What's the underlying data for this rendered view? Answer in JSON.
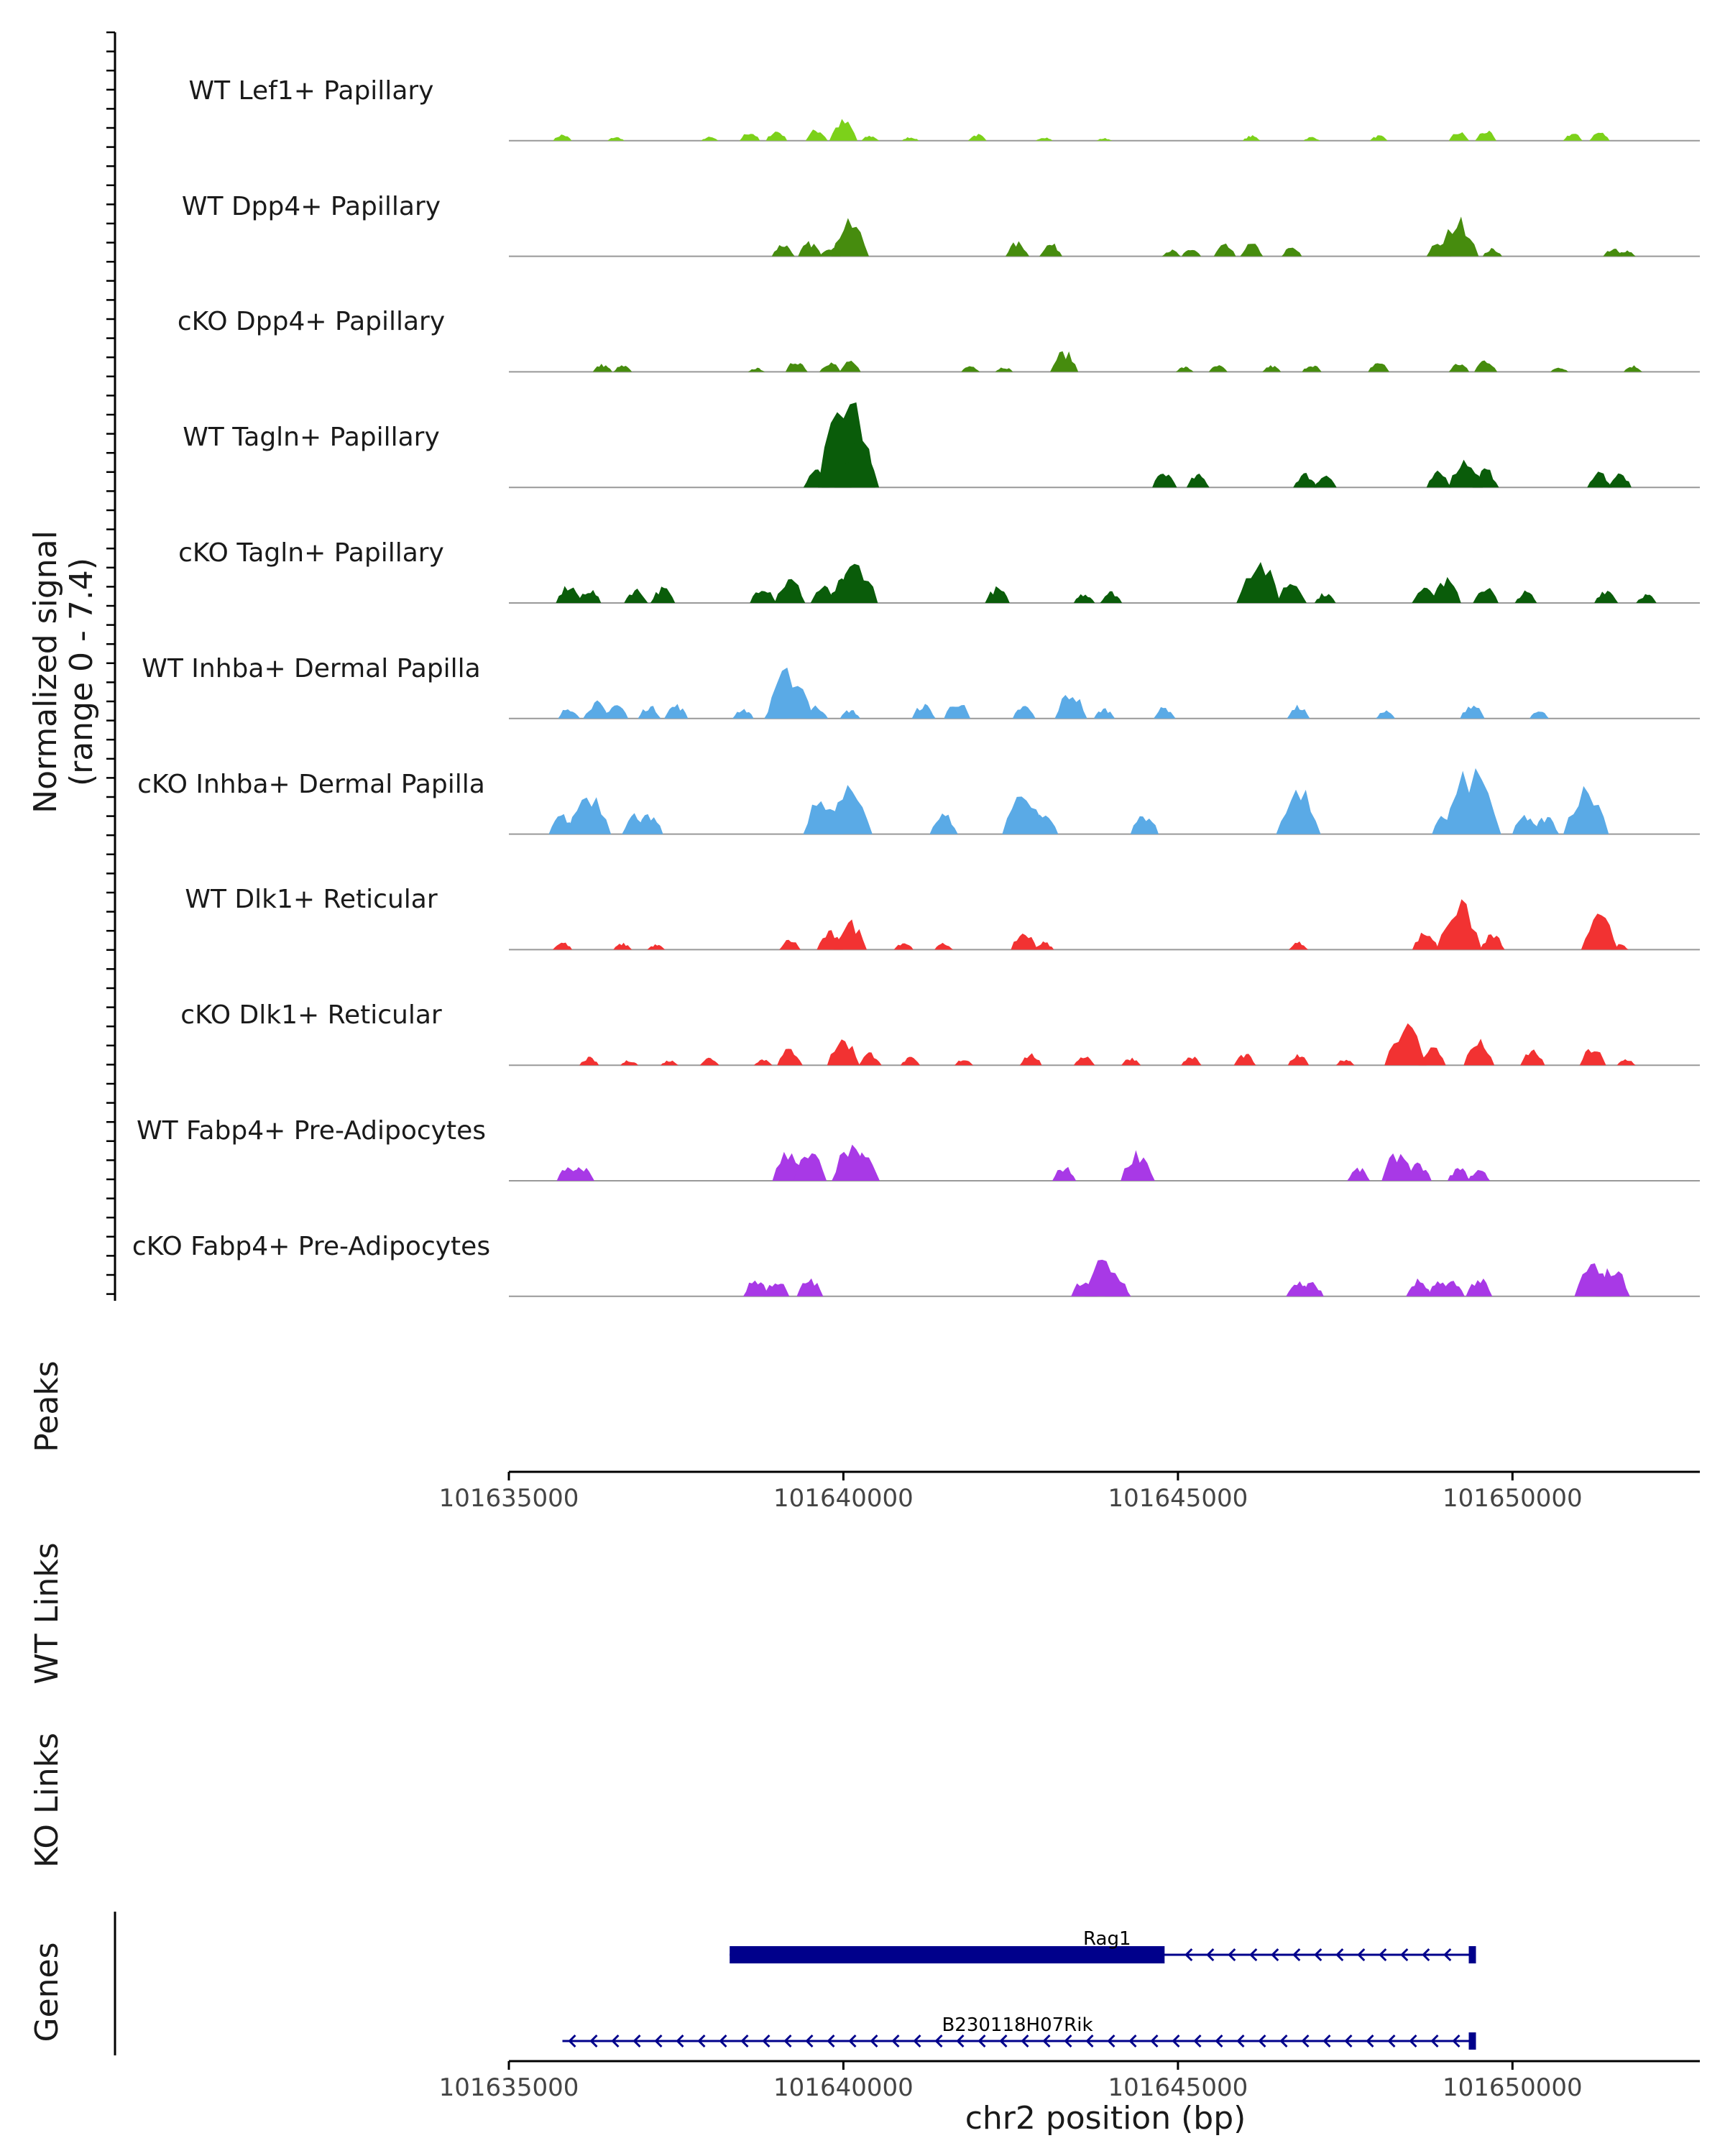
{
  "chart_data": {
    "type": "area",
    "title": "",
    "ylabel": "Normalized signal\n(range 0 - 7.4)",
    "ylim": [
      0,
      7.4
    ],
    "xlabel": "chr2 position (bp)",
    "xlim": [
      101635000,
      101652800
    ],
    "xticks": [
      101635000,
      101640000,
      101645000,
      101650000
    ],
    "tick_labels": [
      "101635000",
      "101640000",
      "101645000",
      "101650000"
    ],
    "series": [
      {
        "name": "WT Lef1+ Papillary",
        "color": "#7cd11a",
        "peaks": [
          [
            101635800,
            0.5
          ],
          [
            101636600,
            0.3
          ],
          [
            101638000,
            0.3
          ],
          [
            101638600,
            0.7
          ],
          [
            101639000,
            0.8
          ],
          [
            101639600,
            0.9
          ],
          [
            101640000,
            1.6
          ],
          [
            101640400,
            0.4
          ],
          [
            101641000,
            0.3
          ],
          [
            101642000,
            0.5
          ],
          [
            101643000,
            0.3
          ],
          [
            101643900,
            0.2
          ],
          [
            101646100,
            0.4
          ],
          [
            101647000,
            0.3
          ],
          [
            101648000,
            0.4
          ],
          [
            101649200,
            0.7
          ],
          [
            101649600,
            0.8
          ],
          [
            101650900,
            0.6
          ],
          [
            101651300,
            0.7
          ]
        ]
      },
      {
        "name": "WT Dpp4+ Papillary",
        "color": "#468c0e",
        "peaks": [
          [
            101639100,
            1.0
          ],
          [
            101639500,
            1.1
          ],
          [
            101639800,
            0.8
          ],
          [
            101640100,
            2.7
          ],
          [
            101642600,
            1.1
          ],
          [
            101643100,
            1.0
          ],
          [
            101644900,
            0.5
          ],
          [
            101645200,
            0.6
          ],
          [
            101645700,
            0.9
          ],
          [
            101646100,
            1.0
          ],
          [
            101646700,
            0.7
          ],
          [
            101648900,
            1.2
          ],
          [
            101649200,
            2.9
          ],
          [
            101649700,
            0.6
          ],
          [
            101651500,
            0.6
          ],
          [
            101651700,
            0.5
          ]
        ]
      },
      {
        "name": "cKO Dpp4+ Papillary",
        "color": "#468c0e",
        "peaks": [
          [
            101636400,
            0.6
          ],
          [
            101636700,
            0.5
          ],
          [
            101638700,
            0.3
          ],
          [
            101639300,
            0.9
          ],
          [
            101639800,
            0.8
          ],
          [
            101640100,
            0.8
          ],
          [
            101641900,
            0.5
          ],
          [
            101642400,
            0.4
          ],
          [
            101643300,
            1.6
          ],
          [
            101645100,
            0.4
          ],
          [
            101645600,
            0.5
          ],
          [
            101646400,
            0.5
          ],
          [
            101647000,
            0.6
          ],
          [
            101648000,
            0.8
          ],
          [
            101649200,
            0.7
          ],
          [
            101649600,
            1.0
          ],
          [
            101650700,
            0.4
          ],
          [
            101651800,
            0.5
          ]
        ]
      },
      {
        "name": "WT Tagln+ Papillary",
        "color": "#0a5c0a",
        "peaks": [
          [
            101639600,
            1.4
          ],
          [
            101639900,
            1.8
          ],
          [
            101640050,
            7.4
          ],
          [
            101640200,
            3.5
          ],
          [
            101644800,
            1.2
          ],
          [
            101645300,
            1.0
          ],
          [
            101646900,
            1.1
          ],
          [
            101647200,
            1.0
          ],
          [
            101648900,
            1.2
          ],
          [
            101649300,
            2.3
          ],
          [
            101649600,
            1.4
          ],
          [
            101651300,
            1.2
          ],
          [
            101651600,
            1.1
          ]
        ]
      },
      {
        "name": "cKO Tagln+ Papillary",
        "color": "#0a5c0a",
        "peaks": [
          [
            101635900,
            1.4
          ],
          [
            101636200,
            1.1
          ],
          [
            101636900,
            1.1
          ],
          [
            101637300,
            1.2
          ],
          [
            101638800,
            1.4
          ],
          [
            101639200,
            1.9
          ],
          [
            101639700,
            1.3
          ],
          [
            101640000,
            1.8
          ],
          [
            101640200,
            3.2
          ],
          [
            101642300,
            1.2
          ],
          [
            101643600,
            0.8
          ],
          [
            101644000,
            0.9
          ],
          [
            101646200,
            3.4
          ],
          [
            101646700,
            1.8
          ],
          [
            101647200,
            0.8
          ],
          [
            101648700,
            1.5
          ],
          [
            101649000,
            1.9
          ],
          [
            101649600,
            1.3
          ],
          [
            101650200,
            0.9
          ],
          [
            101651400,
            1.1
          ],
          [
            101652000,
            0.7
          ]
        ]
      },
      {
        "name": "WT Inhba+ Dermal Papilla",
        "color": "#5aaae6",
        "peaks": [
          [
            101635900,
            0.9
          ],
          [
            101636300,
            1.3
          ],
          [
            101636600,
            1.2
          ],
          [
            101637100,
            1.0
          ],
          [
            101637500,
            1.1
          ],
          [
            101638500,
            0.8
          ],
          [
            101639000,
            1.2
          ],
          [
            101639200,
            3.8
          ],
          [
            101639600,
            1.0
          ],
          [
            101640100,
            0.7
          ],
          [
            101641200,
            1.1
          ],
          [
            101641700,
            1.4
          ],
          [
            101642700,
            1.0
          ],
          [
            101643400,
            2.1
          ],
          [
            101643900,
            0.8
          ],
          [
            101644800,
            0.9
          ],
          [
            101646800,
            1.0
          ],
          [
            101648100,
            0.6
          ],
          [
            101649400,
            1.2
          ],
          [
            101650400,
            0.6
          ]
        ]
      },
      {
        "name": "cKO Inhba+ Dermal Papilla",
        "color": "#5aaae6",
        "peaks": [
          [
            101635800,
            1.5
          ],
          [
            101636200,
            3.4
          ],
          [
            101636900,
            1.6
          ],
          [
            101637100,
            1.5
          ],
          [
            101639700,
            3.0
          ],
          [
            101640100,
            3.5
          ],
          [
            101641500,
            1.6
          ],
          [
            101642700,
            3.4
          ],
          [
            101643000,
            1.6
          ],
          [
            101644500,
            1.6
          ],
          [
            101646800,
            3.5
          ],
          [
            101649000,
            1.5
          ],
          [
            101649400,
            5.0
          ],
          [
            101650200,
            1.5
          ],
          [
            101650500,
            1.4
          ],
          [
            101651100,
            3.6
          ]
        ]
      },
      {
        "name": "WT Dlk1+ Reticular",
        "color": "#f23232",
        "peaks": [
          [
            101635800,
            0.6
          ],
          [
            101636700,
            0.5
          ],
          [
            101637200,
            0.4
          ],
          [
            101639200,
            0.8
          ],
          [
            101639800,
            1.4
          ],
          [
            101640100,
            2.2
          ],
          [
            101640900,
            0.6
          ],
          [
            101641500,
            0.5
          ],
          [
            101642700,
            1.4
          ],
          [
            101643000,
            0.6
          ],
          [
            101646800,
            0.6
          ],
          [
            101648700,
            1.4
          ],
          [
            101649200,
            3.6
          ],
          [
            101649700,
            1.2
          ],
          [
            101651300,
            2.6
          ],
          [
            101651600,
            0.4
          ]
        ]
      },
      {
        "name": "cKO Dlk1+ Reticular",
        "color": "#f23232",
        "peaks": [
          [
            101636200,
            0.6
          ],
          [
            101636800,
            0.4
          ],
          [
            101637400,
            0.4
          ],
          [
            101638000,
            0.6
          ],
          [
            101638800,
            0.5
          ],
          [
            101639200,
            1.3
          ],
          [
            101640000,
            2.1
          ],
          [
            101640400,
            1.0
          ],
          [
            101641000,
            0.6
          ],
          [
            101641800,
            0.5
          ],
          [
            101642800,
            0.9
          ],
          [
            101643600,
            0.8
          ],
          [
            101644300,
            0.6
          ],
          [
            101645200,
            0.7
          ],
          [
            101646000,
            0.9
          ],
          [
            101646800,
            0.8
          ],
          [
            101647500,
            0.5
          ],
          [
            101648400,
            3.2
          ],
          [
            101648800,
            1.5
          ],
          [
            101649500,
            1.9
          ],
          [
            101650300,
            1.2
          ],
          [
            101651200,
            1.4
          ],
          [
            101651700,
            0.5
          ]
        ]
      },
      {
        "name": "WT Fabp4+ Pre-Adipocytes",
        "color": "#a839e6",
        "peaks": [
          [
            101635900,
            1.2
          ],
          [
            101636100,
            1.1
          ],
          [
            101639200,
            2.4
          ],
          [
            101639500,
            2.2
          ],
          [
            101640100,
            2.6
          ],
          [
            101640300,
            2.1
          ],
          [
            101643300,
            1.1
          ],
          [
            101644400,
            2.3
          ],
          [
            101647700,
            1.0
          ],
          [
            101648300,
            2.3
          ],
          [
            101648600,
            1.3
          ],
          [
            101649200,
            1.0
          ],
          [
            101649500,
            0.9
          ]
        ]
      },
      {
        "name": "cKO Fabp4+ Pre-Adipocytes",
        "color": "#a839e6",
        "peaks": [
          [
            101638700,
            1.4
          ],
          [
            101639000,
            1.3
          ],
          [
            101639500,
            1.4
          ],
          [
            101643600,
            1.4
          ],
          [
            101643900,
            2.9
          ],
          [
            101644100,
            1.4
          ],
          [
            101646800,
            1.2
          ],
          [
            101647000,
            1.1
          ],
          [
            101648600,
            1.3
          ],
          [
            101648900,
            1.1
          ],
          [
            101649100,
            1.2
          ],
          [
            101649500,
            1.4
          ],
          [
            101651200,
            2.6
          ],
          [
            101651500,
            2.3
          ]
        ]
      }
    ],
    "side_labels": [
      "Peaks",
      "WT Links",
      "KO Links",
      "Genes"
    ],
    "genes": [
      {
        "name": "Rag1",
        "start": 101638300,
        "end": 101649400,
        "thick_start": 101638300,
        "thick_end": 101644800,
        "strand": "-"
      },
      {
        "name": "B230118H07Rik",
        "start": 101635800,
        "end": 101649400,
        "thick_start": null,
        "thick_end": null,
        "strand": "-"
      }
    ],
    "colors": {
      "track_baseline": "#999999",
      "gene": "#00008b",
      "axis": "#000000",
      "text": "#1a1a1a"
    }
  }
}
